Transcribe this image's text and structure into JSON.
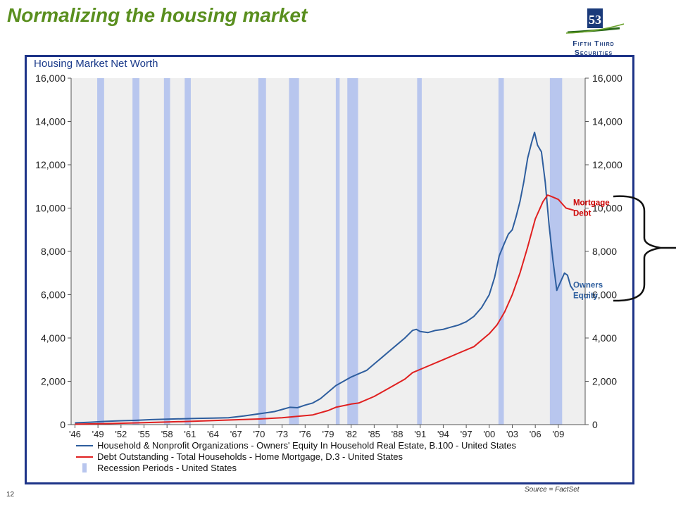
{
  "slide": {
    "title": "Normalizing the housing market",
    "page_number": "12",
    "source": "Source = FactSet",
    "brand_line1": "Fifth Third",
    "brand_line2": "Securities"
  },
  "colors": {
    "title_green": "#5a8f1f",
    "frame_blue": "#1e3488",
    "equity_blue": "#2e5e9e",
    "mortgage_red": "#e02020",
    "recession_fill": "#b8c6ee",
    "plot_bg": "#efefef"
  },
  "chart_data": {
    "type": "line",
    "title": "Housing Market Net Worth",
    "ylim": [
      0,
      16000
    ],
    "y_ticks": [
      "0",
      "2,000",
      "4,000",
      "6,000",
      "8,000",
      "10,000",
      "12,000",
      "14,000",
      "16,000"
    ],
    "y_tick_values": [
      0,
      2000,
      4000,
      6000,
      8000,
      10000,
      12000,
      14000,
      16000
    ],
    "xlim": [
      1945.5,
      2012.5
    ],
    "x_ticks": [
      "'46",
      "'49",
      "'52",
      "'55",
      "'58",
      "'61",
      "'64",
      "'67",
      "'70",
      "'73",
      "'76",
      "'79",
      "'82",
      "'85",
      "'88",
      "'91",
      "'94",
      "'97",
      "'00",
      "'03",
      "'06",
      "'09"
    ],
    "x_tick_values": [
      1946,
      1949,
      1952,
      1955,
      1958,
      1961,
      1964,
      1967,
      1970,
      1973,
      1976,
      1979,
      1982,
      1985,
      1988,
      1991,
      1994,
      1997,
      2000,
      2003,
      2006,
      2009
    ],
    "recessions": [
      [
        1948.9,
        1949.8
      ],
      [
        1953.5,
        1954.4
      ],
      [
        1957.6,
        1958.4
      ],
      [
        1960.3,
        1961.1
      ],
      [
        1969.9,
        1970.9
      ],
      [
        1973.9,
        1975.2
      ],
      [
        1980.0,
        1980.5
      ],
      [
        1981.5,
        1982.9
      ],
      [
        1990.6,
        1991.2
      ],
      [
        2001.2,
        2001.9
      ],
      [
        2007.9,
        2009.5
      ]
    ],
    "series": [
      {
        "name": "Household & Nonprofit Organizations - Owners' Equity In Household Real Estate, B.100 - United States",
        "label": "Owners Equity",
        "color": "#2e5e9e",
        "points": [
          [
            1946,
            80
          ],
          [
            1948,
            110
          ],
          [
            1950,
            150
          ],
          [
            1952,
            180
          ],
          [
            1954,
            200
          ],
          [
            1956,
            230
          ],
          [
            1958,
            250
          ],
          [
            1960,
            270
          ],
          [
            1962,
            290
          ],
          [
            1964,
            300
          ],
          [
            1966,
            320
          ],
          [
            1968,
            400
          ],
          [
            1970,
            500
          ],
          [
            1972,
            600
          ],
          [
            1973,
            700
          ],
          [
            1974,
            800
          ],
          [
            1975,
            780
          ],
          [
            1976,
            900
          ],
          [
            1977,
            1000
          ],
          [
            1978,
            1200
          ],
          [
            1979,
            1500
          ],
          [
            1980,
            1800
          ],
          [
            1981,
            2000
          ],
          [
            1982,
            2200
          ],
          [
            1983,
            2350
          ],
          [
            1984,
            2500
          ],
          [
            1985,
            2800
          ],
          [
            1986,
            3100
          ],
          [
            1987,
            3400
          ],
          [
            1988,
            3700
          ],
          [
            1989,
            4000
          ],
          [
            1990,
            4350
          ],
          [
            1990.5,
            4400
          ],
          [
            1991,
            4300
          ],
          [
            1992,
            4250
          ],
          [
            1993,
            4350
          ],
          [
            1994,
            4400
          ],
          [
            1995,
            4500
          ],
          [
            1996,
            4600
          ],
          [
            1997,
            4750
          ],
          [
            1998,
            5000
          ],
          [
            1999,
            5400
          ],
          [
            2000,
            6000
          ],
          [
            2000.7,
            6800
          ],
          [
            2001.3,
            7800
          ],
          [
            2002,
            8400
          ],
          [
            2002.5,
            8800
          ],
          [
            2003,
            9000
          ],
          [
            2003.5,
            9600
          ],
          [
            2004,
            10300
          ],
          [
            2004.5,
            11200
          ],
          [
            2005,
            12300
          ],
          [
            2005.5,
            13000
          ],
          [
            2005.9,
            13500
          ],
          [
            2006.3,
            12900
          ],
          [
            2006.8,
            12600
          ],
          [
            2007.3,
            11200
          ],
          [
            2007.8,
            9200
          ],
          [
            2008.3,
            7600
          ],
          [
            2008.8,
            6200
          ],
          [
            2009.3,
            6600
          ],
          [
            2009.8,
            7000
          ],
          [
            2010.2,
            6900
          ],
          [
            2010.6,
            6400
          ],
          [
            2011.0,
            6200
          ]
        ]
      },
      {
        "name": "Debt Outstanding - Total Households - Home Mortgage, D.3 - United States",
        "label": "Mortgage Debt",
        "color": "#e02020",
        "points": [
          [
            1946,
            20
          ],
          [
            1950,
            45
          ],
          [
            1955,
            90
          ],
          [
            1960,
            140
          ],
          [
            1965,
            200
          ],
          [
            1970,
            260
          ],
          [
            1973,
            320
          ],
          [
            1975,
            380
          ],
          [
            1977,
            450
          ],
          [
            1979,
            650
          ],
          [
            1980,
            800
          ],
          [
            1982,
            950
          ],
          [
            1983,
            1000
          ],
          [
            1985,
            1300
          ],
          [
            1987,
            1700
          ],
          [
            1989,
            2100
          ],
          [
            1990,
            2400
          ],
          [
            1992,
            2700
          ],
          [
            1994,
            3000
          ],
          [
            1996,
            3300
          ],
          [
            1998,
            3600
          ],
          [
            2000,
            4200
          ],
          [
            2001,
            4600
          ],
          [
            2002,
            5200
          ],
          [
            2003,
            6000
          ],
          [
            2004,
            7000
          ],
          [
            2005,
            8200
          ],
          [
            2006,
            9500
          ],
          [
            2007,
            10300
          ],
          [
            2007.6,
            10600
          ],
          [
            2008,
            10550
          ],
          [
            2009,
            10400
          ],
          [
            2009.5,
            10200
          ],
          [
            2010,
            10000
          ],
          [
            2011,
            9900
          ]
        ]
      }
    ],
    "legend": [
      {
        "label": "Household & Nonprofit Organizations - Owners' Equity In Household Real Estate, B.100 - United States",
        "kind": "line",
        "color": "#2e5e9e"
      },
      {
        "label": "Debt Outstanding - Total Households - Home Mortgage, D.3 - United States",
        "kind": "line",
        "color": "#e02020"
      },
      {
        "label": "Recession Periods - United States",
        "kind": "bar",
        "color": "#b8c6ee"
      }
    ],
    "annotations": [
      {
        "lines": [
          "Mortgage",
          "Debt"
        ],
        "color": "#cc0000",
        "x": 2010.2,
        "y": 10000
      },
      {
        "lines": [
          "Owners",
          "Equity"
        ],
        "color": "#2e5e9e",
        "x": 2010.2,
        "y": 6200
      }
    ],
    "legend_position": "bottom"
  }
}
